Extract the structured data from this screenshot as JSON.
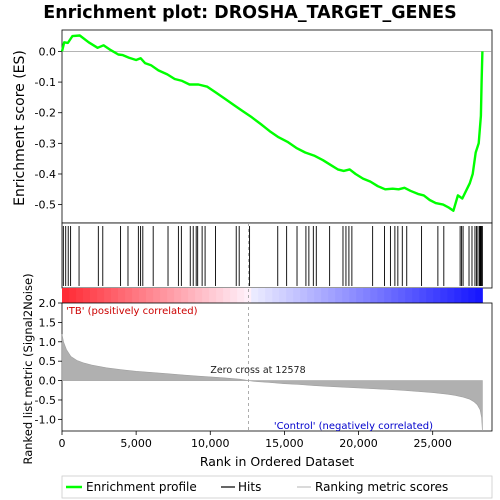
{
  "chart_data": {
    "type": "line",
    "title": "Enrichment plot: DROSHA_TARGET_GENES",
    "es_panel": {
      "ylabel": "Enrichment score (ES)",
      "ylim": [
        -0.56,
        0.07
      ],
      "yticks": [
        0.0,
        -0.1,
        -0.2,
        -0.3,
        -0.4,
        -0.5
      ],
      "ytick_labels": [
        "0.0",
        "-0.1",
        "-0.2",
        "-0.3",
        "-0.4",
        "-0.5"
      ],
      "series": [
        {
          "name": "Enrichment profile",
          "color": "#00ff00",
          "x": [
            0,
            150,
            400,
            700,
            1200,
            1800,
            2400,
            2800,
            3300,
            3800,
            4100,
            4500,
            5000,
            5300,
            5600,
            6000,
            6500,
            7100,
            7600,
            8100,
            8600,
            9200,
            9800,
            10400,
            11000,
            11600,
            12200,
            12800,
            13400,
            14000,
            14600,
            15200,
            15800,
            16400,
            17000,
            17600,
            18100,
            18600,
            19000,
            19400,
            19800,
            20300,
            20800,
            21300,
            21800,
            22300,
            22700,
            23100,
            23500,
            24000,
            24400,
            24800,
            25200,
            25700,
            26100,
            26400,
            26700,
            27000,
            27300,
            27500,
            27700,
            27900,
            28100,
            28250,
            28300,
            28350
          ],
          "y": [
            0.0,
            0.03,
            0.028,
            0.05,
            0.052,
            0.03,
            0.012,
            0.02,
            0.004,
            -0.01,
            -0.012,
            -0.02,
            -0.028,
            -0.022,
            -0.038,
            -0.045,
            -0.062,
            -0.075,
            -0.09,
            -0.096,
            -0.108,
            -0.108,
            -0.115,
            -0.135,
            -0.155,
            -0.175,
            -0.195,
            -0.215,
            -0.237,
            -0.26,
            -0.28,
            -0.295,
            -0.315,
            -0.33,
            -0.34,
            -0.355,
            -0.37,
            -0.385,
            -0.39,
            -0.385,
            -0.4,
            -0.415,
            -0.425,
            -0.44,
            -0.45,
            -0.448,
            -0.45,
            -0.445,
            -0.455,
            -0.465,
            -0.47,
            -0.485,
            -0.495,
            -0.5,
            -0.51,
            -0.52,
            -0.47,
            -0.48,
            -0.45,
            -0.43,
            -0.4,
            -0.33,
            -0.3,
            -0.21,
            -0.1,
            0.0
          ]
        }
      ]
    },
    "hits": {
      "name": "Hits",
      "positions": [
        90,
        250,
        420,
        580,
        1150,
        2450,
        2750,
        3950,
        4450,
        5150,
        5300,
        5450,
        6150,
        7150,
        7850,
        8050,
        8650,
        8850,
        9050,
        9150,
        9450,
        9650,
        10350,
        11750,
        11950,
        12650,
        14550,
        15150,
        15850,
        16450,
        16650,
        16950,
        17150,
        18050,
        18950,
        19150,
        19350,
        19550,
        20950,
        21750,
        22150,
        22450,
        22650,
        22950,
        23250,
        24250,
        25350,
        25750,
        26850,
        26950,
        27050,
        27450,
        27650,
        27850,
        27950,
        28050,
        28150,
        28200,
        28250,
        28300,
        28350
      ]
    },
    "rank_panel": {
      "ylabel": "Ranked list metric (Signal2Noise)",
      "xlabel": "Rank in Ordered Dataset",
      "ylim": [
        -1.3,
        2.0
      ],
      "yticks": [
        2.0,
        1.5,
        1.0,
        0.5,
        0.0,
        -0.5,
        -1.0
      ],
      "ytick_labels": [
        "2.0",
        "1.5",
        "1.0",
        "0.5",
        "0.0",
        "-0.5",
        "-1.0"
      ],
      "fill_color": "#b0b0b0",
      "x": [
        0,
        100,
        300,
        600,
        1000,
        1500,
        2000,
        3000,
        4000,
        5000,
        6000,
        7000,
        8000,
        9000,
        10000,
        11000,
        12000,
        12578,
        13000,
        14000,
        15000,
        16000,
        17000,
        18000,
        19000,
        20000,
        21000,
        22000,
        23000,
        24000,
        25000,
        26000,
        26500,
        27000,
        27500,
        27800,
        28000,
        28200,
        28300,
        28350
      ],
      "values": [
        1.2,
        1.0,
        0.8,
        0.62,
        0.52,
        0.45,
        0.4,
        0.33,
        0.28,
        0.24,
        0.21,
        0.18,
        0.15,
        0.12,
        0.095,
        0.07,
        0.035,
        0.0,
        -0.02,
        -0.05,
        -0.08,
        -0.1,
        -0.13,
        -0.15,
        -0.17,
        -0.19,
        -0.21,
        -0.23,
        -0.25,
        -0.28,
        -0.31,
        -0.35,
        -0.38,
        -0.42,
        -0.48,
        -0.55,
        -0.62,
        -0.75,
        -0.95,
        -1.3
      ]
    },
    "xlim": [
      0,
      29000
    ],
    "xticks": [
      0,
      5000,
      10000,
      15000,
      20000,
      25000
    ],
    "xtick_labels": [
      "0",
      "5,000",
      "10,000",
      "15,000",
      "20,000",
      "25,000"
    ],
    "zero_cross_rank": 12578,
    "annotations": {
      "zero_cross": "Zero cross at 12578",
      "positive": "'TB' (positively correlated)",
      "negative": "'Control' (negatively correlated)"
    },
    "legend": {
      "placement": "bottom",
      "entries": [
        {
          "label": "Enrichment profile",
          "color": "#00ff00"
        },
        {
          "label": "Hits",
          "color": "#000000"
        },
        {
          "label": "Ranking metric scores",
          "color": "#c0c0c0"
        }
      ]
    }
  }
}
